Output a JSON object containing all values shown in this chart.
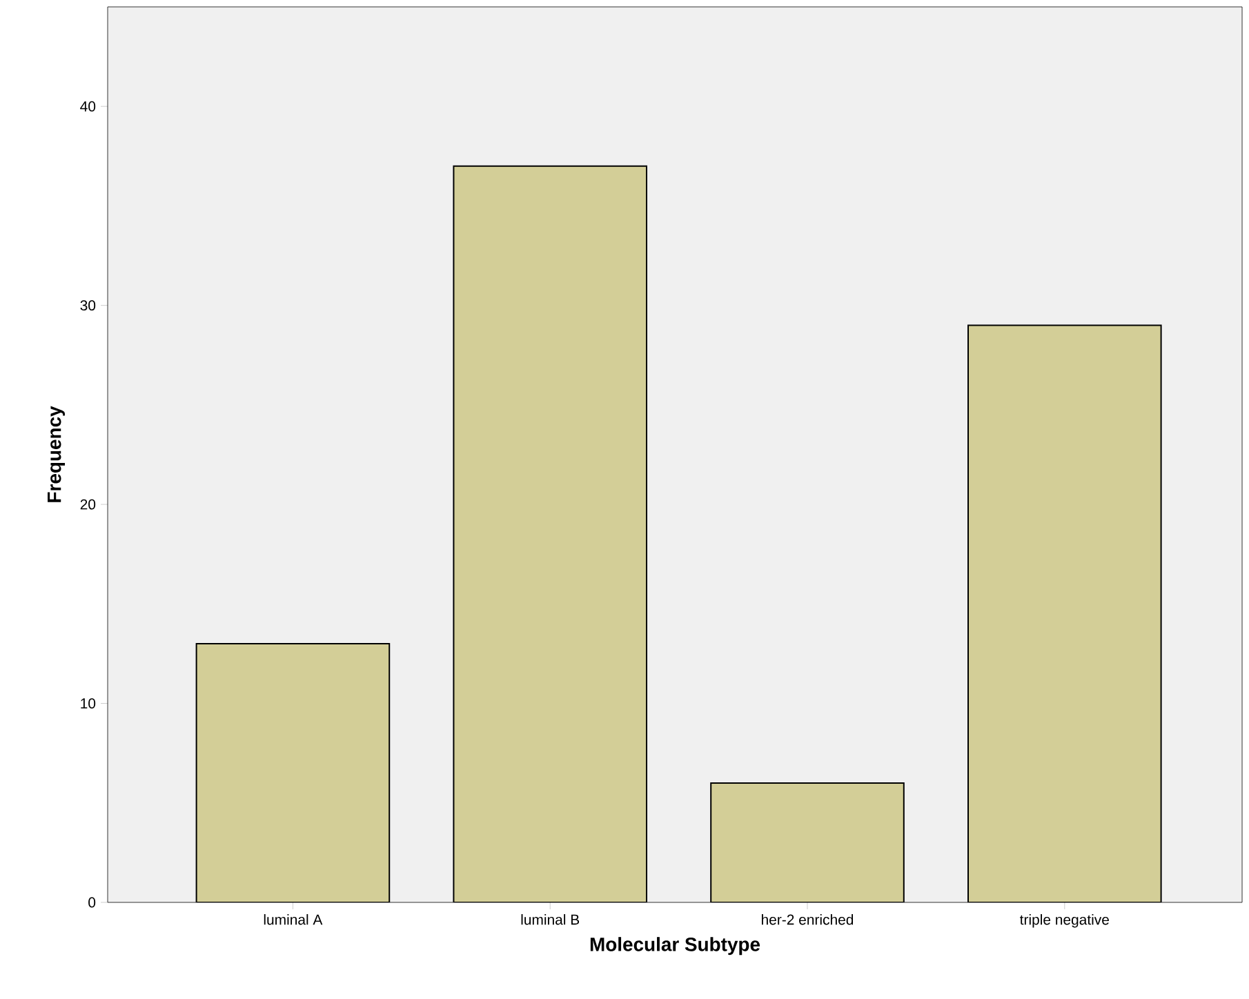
{
  "chart_data": {
    "type": "bar",
    "xlabel": "Molecular Subtype",
    "ylabel": "Frequency",
    "categories": [
      "luminal A",
      "luminal B",
      "her-2 enriched",
      "triple negative"
    ],
    "values": [
      13,
      37,
      6,
      29
    ],
    "color": "#d3ce97",
    "ylim": [
      0,
      45
    ],
    "yticks": [
      0,
      10,
      20,
      30,
      40
    ]
  }
}
